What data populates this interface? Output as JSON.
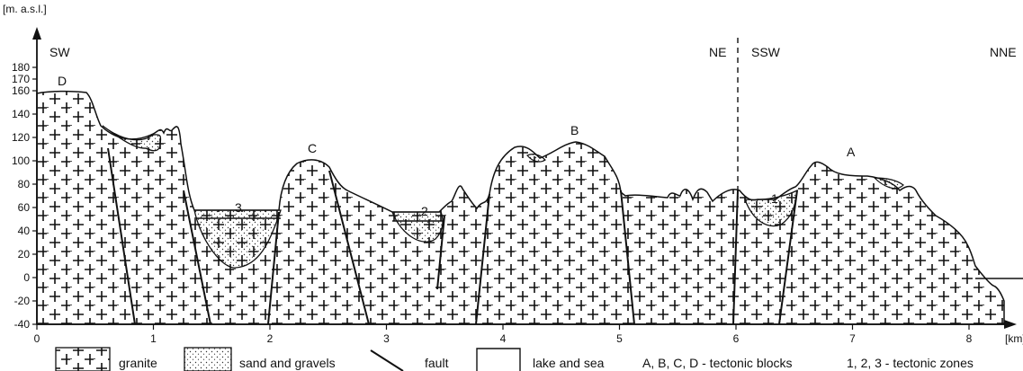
{
  "axis": {
    "y_unit": "[m. a.s.l.]",
    "x_unit": "[km]",
    "y_ticks": [
      "180",
      "170",
      "160",
      "140",
      "120",
      "100",
      "80",
      "60",
      "40",
      "20",
      "0",
      "-20",
      "-40"
    ],
    "y_values": [
      180,
      170,
      160,
      140,
      120,
      100,
      80,
      60,
      40,
      20,
      0,
      -20,
      -40
    ],
    "x_ticks": [
      "0",
      "1",
      "2",
      "3",
      "4",
      "5",
      "6",
      "7",
      "8"
    ],
    "x_values": [
      0,
      1,
      2,
      3,
      4,
      5,
      6,
      7,
      8
    ]
  },
  "directions": {
    "left": "SW",
    "mid_left": "NE",
    "mid_right": "SSW",
    "right": "NNE"
  },
  "blocks": {
    "A": "A",
    "B": "B",
    "C": "C",
    "D": "D"
  },
  "zones": {
    "z1": "1",
    "z2": "2",
    "z3": "3"
  },
  "legend": {
    "granite": "granite",
    "sand": "sand and gravels",
    "fault": "fault",
    "lake": "lake and sea",
    "blocks_note": "A, B, C, D - tectonic blocks",
    "zones_note": "1, 2, 3 - tectonic zones"
  }
}
